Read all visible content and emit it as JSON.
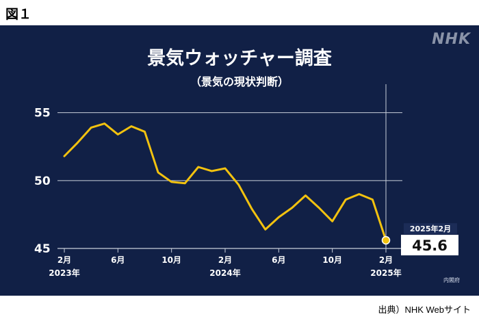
{
  "figure_label": "図１",
  "logo": "NHK",
  "source": "出典）NHK Webサイト",
  "credit": "内閣府",
  "colors": {
    "background": "#112046",
    "line": "#f2c20f",
    "grid": "#c9cfdb",
    "callout_box": "#ffffff"
  },
  "chart_data": {
    "type": "line",
    "title": "景気ウォッチャー調査",
    "subtitle": "（景気の現状判断）",
    "xlabel": "",
    "ylabel": "",
    "ylim": [
      45,
      57
    ],
    "yticks": [
      "45",
      "50",
      "55"
    ],
    "xticks": [
      {
        "month_label": "2月",
        "year_label": "2023年",
        "index": 0
      },
      {
        "month_label": "6月",
        "year_label": "",
        "index": 4
      },
      {
        "month_label": "10月",
        "year_label": "",
        "index": 8
      },
      {
        "month_label": "2月",
        "year_label": "2024年",
        "index": 12
      },
      {
        "month_label": "6月",
        "year_label": "",
        "index": 16
      },
      {
        "month_label": "10月",
        "year_label": "",
        "index": 20
      },
      {
        "month_label": "2月",
        "year_label": "2025年",
        "index": 24
      }
    ],
    "x": [
      "2023-02",
      "2023-03",
      "2023-04",
      "2023-05",
      "2023-06",
      "2023-07",
      "2023-08",
      "2023-09",
      "2023-10",
      "2023-11",
      "2023-12",
      "2024-01",
      "2024-02",
      "2024-03",
      "2024-04",
      "2024-05",
      "2024-06",
      "2024-07",
      "2024-08",
      "2024-09",
      "2024-10",
      "2024-11",
      "2024-12",
      "2025-01",
      "2025-02"
    ],
    "series": [
      {
        "name": "",
        "values": [
          51.8,
          52.8,
          53.9,
          54.2,
          53.4,
          54.0,
          53.6,
          50.6,
          49.9,
          49.8,
          51.0,
          50.7,
          50.9,
          49.7,
          47.9,
          46.4,
          47.3,
          48.0,
          48.9,
          48.0,
          47.0,
          48.6,
          49.0,
          48.6,
          45.6
        ]
      }
    ],
    "grid": true,
    "annotation": {
      "date": "2025年2月",
      "value": "45.6"
    }
  }
}
